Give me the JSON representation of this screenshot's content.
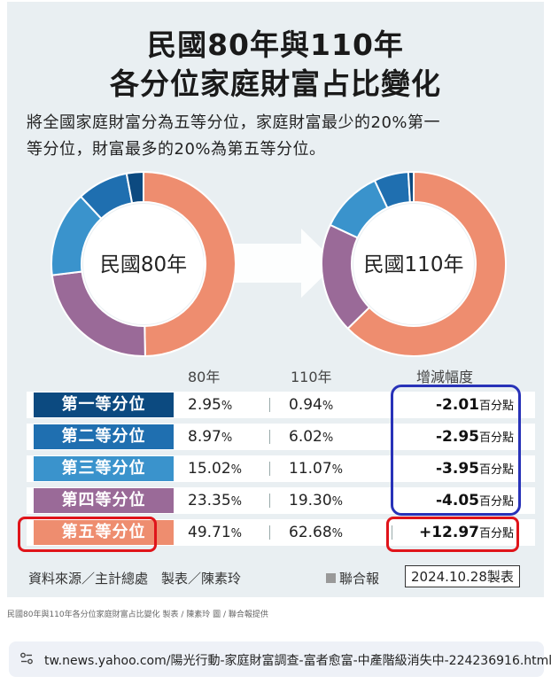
{
  "title_line1": "民國80年與110年",
  "title_line2": "各分位家庭財富占比變化",
  "description_line1": "將全國家庭財富分為五等分位，家庭財富最少的20%第一",
  "description_line2": "等分位，財富最多的20%為第五等分位。",
  "donut_labels": [
    "民國80年",
    "民國110年"
  ],
  "column_headers": {
    "y80": "80年",
    "y110": "110年",
    "change": "增減幅度"
  },
  "unit_percent": "%",
  "unit_points": "百分點",
  "colors": {
    "q1": "#0c4a80",
    "q2": "#1f6fb0",
    "q3": "#3a93cc",
    "q4": "#9a6a98",
    "q5": "#ee8d6f"
  },
  "rows": [
    {
      "label": "第一等分位",
      "y80": "2.95",
      "y110": "0.94",
      "change": "-2.01"
    },
    {
      "label": "第二等分位",
      "y80": "8.97",
      "y110": "6.02",
      "change": "-2.95"
    },
    {
      "label": "第三等分位",
      "y80": "15.02",
      "y110": "11.07",
      "change": "-3.95"
    },
    {
      "label": "第四等分位",
      "y80": "23.35",
      "y110": "19.30",
      "change": "-4.05"
    },
    {
      "label": "第五等分位",
      "y80": "49.71",
      "y110": "62.68",
      "change": "+12.97"
    }
  ],
  "footer": {
    "source": "資料來源／主計總處　製表／陳素玲",
    "publisher": "聯合報",
    "date_stamp": "2024.10.28製表"
  },
  "caption": "民國80年與110年各分位家庭財富占比變化 製表 / 陳素玲 圖 / 聯合報提供",
  "url": "tw.news.yahoo.com/陽光行動-家庭財富調查-富者愈富-中產階級消失中-224236916.html",
  "chart_data": {
    "type": "pie",
    "categories": [
      "第一等分位",
      "第二等分位",
      "第三等分位",
      "第四等分位",
      "第五等分位"
    ],
    "series": [
      {
        "name": "民國80年",
        "values": [
          2.95,
          8.97,
          15.02,
          23.35,
          49.71
        ]
      },
      {
        "name": "民國110年",
        "values": [
          0.94,
          6.02,
          11.07,
          19.3,
          62.68
        ]
      }
    ],
    "change_points": [
      -2.01,
      -2.95,
      -3.95,
      -4.05,
      12.97
    ],
    "title": "民國80年與110年各分位家庭財富占比變化"
  }
}
